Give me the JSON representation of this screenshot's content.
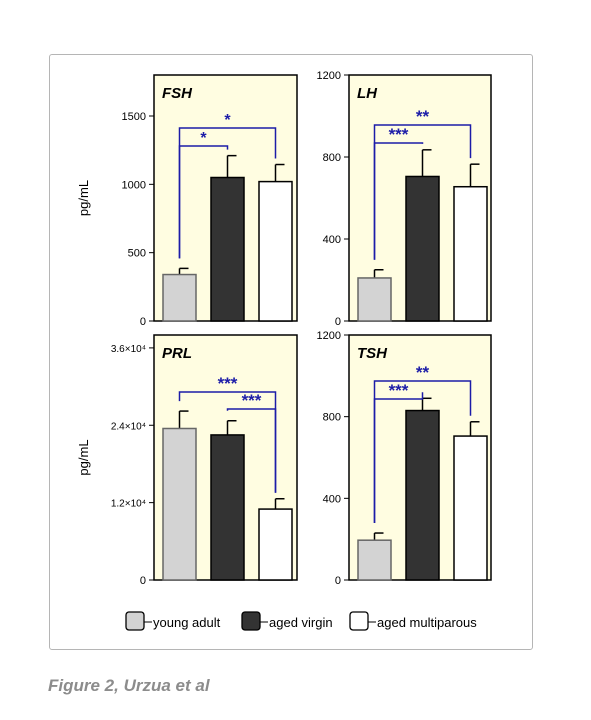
{
  "caption": "Figure 2, Urzua et al",
  "legend": [
    {
      "label": "young adult",
      "color": "#d3d3d3"
    },
    {
      "label": "aged virgin",
      "color": "#333333"
    },
    {
      "label": "aged multiparous",
      "color": "#ffffff"
    }
  ],
  "colors": {
    "panel_bg": "#fffde1",
    "bracket": "#1c1ca8",
    "star": "#1c1ca8"
  },
  "chart_data": [
    {
      "type": "bar",
      "title": "FSH",
      "ylabel": "pg/mL",
      "ylim": [
        0,
        1800
      ],
      "yticks": [
        0,
        500,
        1000,
        1500
      ],
      "ytick_labels": [
        "0",
        "500",
        "1000",
        "1500"
      ],
      "categories": [
        "young adult",
        "aged virgin",
        "aged multiparous"
      ],
      "values": [
        340,
        1050,
        1020
      ],
      "errors": [
        45,
        160,
        125
      ],
      "significance": [
        {
          "from": 0,
          "to": 1,
          "label": "*"
        },
        {
          "from": 0,
          "to": 2,
          "label": "*"
        }
      ]
    },
    {
      "type": "bar",
      "title": "LH",
      "ylabel": "",
      "ylim": [
        0,
        1200
      ],
      "yticks": [
        0,
        400,
        800,
        1200
      ],
      "ytick_labels": [
        "0",
        "400",
        "800",
        "1200"
      ],
      "categories": [
        "young adult",
        "aged virgin",
        "aged multiparous"
      ],
      "values": [
        210,
        705,
        655
      ],
      "errors": [
        40,
        130,
        110
      ],
      "significance": [
        {
          "from": 0,
          "to": 1,
          "label": "***"
        },
        {
          "from": 0,
          "to": 2,
          "label": "**"
        }
      ]
    },
    {
      "type": "bar",
      "title": "PRL",
      "ylabel": "pg/mL",
      "ylim": [
        0,
        38000
      ],
      "yticks": [
        0,
        12000,
        24000,
        36000
      ],
      "ytick_labels": [
        "0",
        "1.2×10⁴",
        "2.4×10⁴",
        "3.6×10⁴"
      ],
      "categories": [
        "young adult",
        "aged virgin",
        "aged multiparous"
      ],
      "values": [
        23500,
        22500,
        11000
      ],
      "errors": [
        2700,
        2200,
        1600
      ],
      "significance": [
        {
          "from": 1,
          "to": 2,
          "label": "***"
        },
        {
          "from": 0,
          "to": 2,
          "label": "***"
        }
      ]
    },
    {
      "type": "bar",
      "title": "TSH",
      "ylabel": "",
      "ylim": [
        0,
        1200
      ],
      "yticks": [
        0,
        400,
        800,
        1200
      ],
      "ytick_labels": [
        "0",
        "400",
        "800",
        "1200"
      ],
      "categories": [
        "young adult",
        "aged virgin",
        "aged multiparous"
      ],
      "values": [
        195,
        830,
        705
      ],
      "errors": [
        35,
        60,
        70
      ],
      "significance": [
        {
          "from": 0,
          "to": 1,
          "label": "***"
        },
        {
          "from": 0,
          "to": 2,
          "label": "**"
        }
      ]
    }
  ]
}
